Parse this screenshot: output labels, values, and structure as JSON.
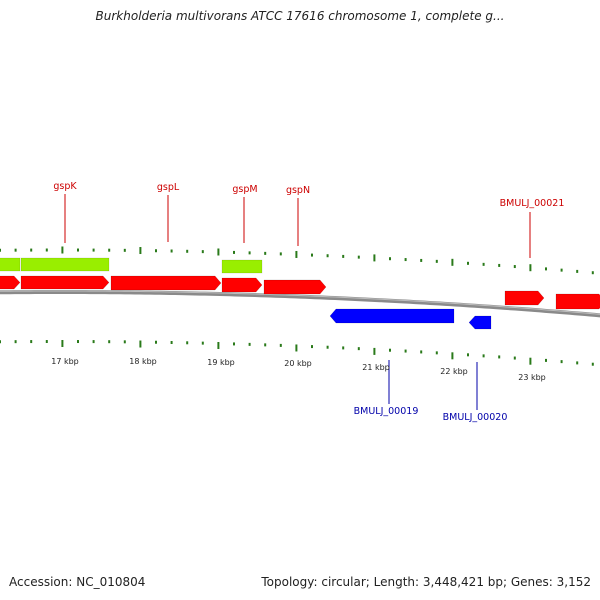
{
  "title": "Burkholderia multivorans ATCC 17616 chromosome 1, complete g...",
  "footer": {
    "accession": "Accession: NC_010804",
    "summary": "Topology: circular; Length: 3,448,421 bp; Genes: 3,152"
  },
  "colors": {
    "forward_gene": "#ff0000",
    "reverse_gene": "#0000ff",
    "green_feature": "#99ee00",
    "backbone": "#8a8a8a",
    "tick": "#2a7a1a",
    "forward_label": "#cc0000",
    "reverse_label": "#0000aa"
  },
  "scale_labels": [
    "17 kbp",
    "18 kbp",
    "19 kbp",
    "20 kbp",
    "21 kbp",
    "22 kbp",
    "23 kbp"
  ],
  "forward_gene_labels": [
    "gspK",
    "gspL",
    "gspM",
    "gspN",
    "BMULJ_00021"
  ],
  "reverse_gene_labels": [
    "BMULJ_00019",
    "BMULJ_00020"
  ]
}
